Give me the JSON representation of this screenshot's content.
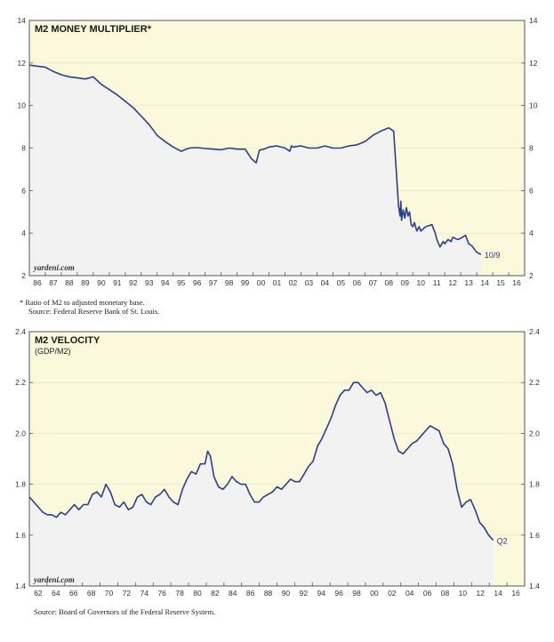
{
  "chart_data": [
    {
      "type": "line",
      "title": "M2 MONEY MULTIPLIER*",
      "brand": "yardeni.com",
      "end_label": "10/9",
      "ylim": [
        2,
        14
      ],
      "yticks": [
        "2",
        "4",
        "6",
        "8",
        "10",
        "12",
        "14"
      ],
      "xlim": [
        1985.5,
        2016.5
      ],
      "xtick_labels": [
        "86",
        "87",
        "88",
        "89",
        "90",
        "91",
        "92",
        "93",
        "94",
        "95",
        "96",
        "97",
        "98",
        "99",
        "00",
        "01",
        "02",
        "03",
        "04",
        "05",
        "06",
        "07",
        "08",
        "09",
        "10",
        "11",
        "12",
        "13",
        "14",
        "15",
        "16"
      ],
      "footnote_1": "*  Ratio of M2 to adjusted monetary base.",
      "footnote_2": "Source: Federal Reserve Bank of St. Louis.",
      "colors": {
        "line": "#2b3f8f",
        "fill": "#f2f2f2",
        "plot_bg": "#fbf8dc"
      },
      "x": [
        1985.5,
        1986.0,
        1986.5,
        1987.0,
        1987.5,
        1988.0,
        1988.5,
        1989.0,
        1989.5,
        1990.0,
        1990.5,
        1991.0,
        1991.5,
        1992.0,
        1992.5,
        1993.0,
        1993.5,
        1994.0,
        1994.5,
        1995.0,
        1995.5,
        1996.0,
        1996.5,
        1997.0,
        1997.5,
        1998.0,
        1998.5,
        1999.0,
        1999.4,
        1999.7,
        1999.9,
        2000.2,
        2000.5,
        2001.0,
        2001.5,
        2001.8,
        2001.9,
        2002.0,
        2002.5,
        2003.0,
        2003.5,
        2004.0,
        2004.5,
        2005.0,
        2005.5,
        2006.0,
        2006.5,
        2007.0,
        2007.5,
        2008.0,
        2008.3,
        2008.5,
        2008.6,
        2008.7,
        2008.75,
        2008.8,
        2008.9,
        2009.0,
        2009.1,
        2009.2,
        2009.3,
        2009.4,
        2009.5,
        2009.6,
        2009.75,
        2009.9,
        2010.0,
        2010.3,
        2010.5,
        2010.7,
        2010.9,
        2011.0,
        2011.2,
        2011.4,
        2011.5,
        2011.7,
        2011.9,
        2012.0,
        2012.3,
        2012.5,
        2012.8,
        2012.9,
        2013.0,
        2013.2,
        2013.4,
        2013.5,
        2013.77
      ],
      "values": [
        11.9,
        11.85,
        11.8,
        11.6,
        11.45,
        11.35,
        11.3,
        11.25,
        11.35,
        11.0,
        10.75,
        10.5,
        10.2,
        9.9,
        9.5,
        9.1,
        8.6,
        8.3,
        8.05,
        7.85,
        8.0,
        8.02,
        7.98,
        7.95,
        7.92,
        8.0,
        7.95,
        7.95,
        7.5,
        7.3,
        7.9,
        7.95,
        8.05,
        8.1,
        8.0,
        7.85,
        8.1,
        8.05,
        8.1,
        8.0,
        8.0,
        8.1,
        8.0,
        8.0,
        8.1,
        8.15,
        8.3,
        8.6,
        8.8,
        8.95,
        8.8,
        6.5,
        5.3,
        4.8,
        5.5,
        4.6,
        5.1,
        4.7,
        5.2,
        4.8,
        5.0,
        4.4,
        4.3,
        4.5,
        4.1,
        4.3,
        4.1,
        4.3,
        4.35,
        4.4,
        4.0,
        3.7,
        3.35,
        3.6,
        3.5,
        3.7,
        3.6,
        3.8,
        3.7,
        3.75,
        3.9,
        3.7,
        3.5,
        3.4,
        3.2,
        3.1,
        3.0
      ]
    },
    {
      "type": "line",
      "title": "M2 VELOCITY",
      "subtitle": "(GDP/M2)",
      "brand": "yardeni.com",
      "end_label": "Q2",
      "ylim": [
        1.4,
        2.4
      ],
      "yticks": [
        "1.4",
        "1.6",
        "1.8",
        "2.0",
        "2.2",
        "2.4"
      ],
      "xlim": [
        1961.5,
        2016.5
      ],
      "xtick_labels": [
        "62",
        "64",
        "66",
        "68",
        "70",
        "72",
        "74",
        "76",
        "78",
        "80",
        "82",
        "84",
        "86",
        "88",
        "90",
        "92",
        "94",
        "96",
        "98",
        "00",
        "02",
        "04",
        "06",
        "08",
        "10",
        "12",
        "14",
        "16"
      ],
      "source": "Source: Board of Governors of the Federal Reserve System.",
      "colors": {
        "line": "#2b3f8f",
        "fill": "#f2f2f2",
        "plot_bg": "#fbf8dc"
      },
      "x": [
        1961.5,
        1962.0,
        1963.0,
        1963.5,
        1964.0,
        1964.5,
        1965.0,
        1965.5,
        1966.0,
        1966.5,
        1967.0,
        1967.5,
        1968.0,
        1968.5,
        1969.0,
        1969.5,
        1970.0,
        1970.5,
        1971.0,
        1971.5,
        1972.0,
        1972.5,
        1973.0,
        1973.5,
        1974.0,
        1974.5,
        1975.0,
        1975.5,
        1976.0,
        1976.5,
        1977.0,
        1977.5,
        1978.0,
        1978.5,
        1979.0,
        1979.5,
        1980.0,
        1980.5,
        1981.0,
        1981.3,
        1981.6,
        1982.0,
        1982.5,
        1983.0,
        1983.5,
        1984.0,
        1984.5,
        1985.0,
        1985.5,
        1986.0,
        1986.5,
        1987.0,
        1987.5,
        1988.0,
        1988.5,
        1989.0,
        1989.5,
        1990.0,
        1990.5,
        1991.0,
        1991.5,
        1992.0,
        1992.5,
        1993.0,
        1993.5,
        1994.0,
        1994.5,
        1995.0,
        1995.5,
        1996.0,
        1996.5,
        1997.0,
        1997.5,
        1998.0,
        1998.5,
        1999.0,
        1999.5,
        2000.0,
        2000.5,
        2001.0,
        2001.5,
        2002.0,
        2002.5,
        2003.0,
        2003.5,
        2004.0,
        2004.5,
        2005.0,
        2005.5,
        2006.0,
        2006.5,
        2007.0,
        2007.5,
        2008.0,
        2008.5,
        2009.0,
        2009.5,
        2010.0,
        2010.5,
        2011.0,
        2011.5,
        2012.0,
        2012.5,
        2013.0
      ],
      "values": [
        1.75,
        1.73,
        1.69,
        1.68,
        1.68,
        1.67,
        1.69,
        1.68,
        1.7,
        1.72,
        1.7,
        1.72,
        1.72,
        1.76,
        1.77,
        1.75,
        1.8,
        1.77,
        1.72,
        1.71,
        1.73,
        1.7,
        1.71,
        1.75,
        1.76,
        1.73,
        1.72,
        1.75,
        1.76,
        1.78,
        1.75,
        1.73,
        1.72,
        1.78,
        1.82,
        1.85,
        1.84,
        1.88,
        1.88,
        1.93,
        1.91,
        1.83,
        1.79,
        1.78,
        1.8,
        1.83,
        1.81,
        1.8,
        1.8,
        1.76,
        1.73,
        1.73,
        1.75,
        1.76,
        1.77,
        1.79,
        1.78,
        1.8,
        1.82,
        1.81,
        1.81,
        1.84,
        1.87,
        1.89,
        1.95,
        1.98,
        2.02,
        2.06,
        2.11,
        2.15,
        2.17,
        2.17,
        2.2,
        2.2,
        2.18,
        2.16,
        2.17,
        2.15,
        2.16,
        2.12,
        2.05,
        1.98,
        1.93,
        1.92,
        1.94,
        1.96,
        1.97,
        1.99,
        2.01,
        2.03,
        2.02,
        2.01,
        1.96,
        1.94,
        1.88,
        1.78,
        1.71,
        1.73,
        1.74,
        1.7,
        1.65,
        1.63,
        1.6,
        1.58
      ]
    }
  ]
}
